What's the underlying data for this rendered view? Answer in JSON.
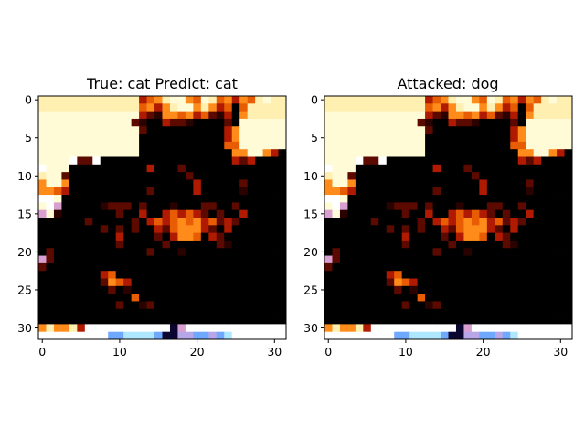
{
  "chart_data": [
    {
      "type": "heatmap",
      "title": "True: cat  Predict: cat",
      "xlabel": "",
      "ylabel": "",
      "xlim": [
        -0.5,
        31.5
      ],
      "ylim": [
        31.5,
        -0.5
      ],
      "x_ticks": [
        "0",
        "10",
        "20",
        "30"
      ],
      "y_ticks": [
        "0",
        "5",
        "10",
        "15",
        "20",
        "25",
        "30"
      ],
      "grid": false,
      "image_description_key": "image_a"
    },
    {
      "type": "heatmap",
      "title": "Attacked: dog",
      "xlabel": "",
      "ylabel": "",
      "xlim": [
        -0.5,
        31.5
      ],
      "ylim": [
        31.5,
        -0.5
      ],
      "x_ticks": [
        "0",
        "10",
        "20",
        "30"
      ],
      "y_ticks": [
        "0",
        "5",
        "10",
        "15",
        "20",
        "25",
        "30"
      ],
      "grid": false,
      "image_description_key": "image_b"
    }
  ],
  "colors": {
    "background": "#000000",
    "pale": "#fffbd6",
    "cream": "#ffefb0",
    "white": "#ffffff",
    "orange": "#ff8c1a",
    "deep_orange": "#e85d04",
    "red": "#b01a00",
    "dark_red": "#5c0a00",
    "brown": "#2a0300",
    "blue": "#6ea8ff",
    "light_blue": "#aee7ff",
    "lavender": "#b7a6e8",
    "pink": "#d8a0d0",
    "navy": "#0b0630"
  }
}
